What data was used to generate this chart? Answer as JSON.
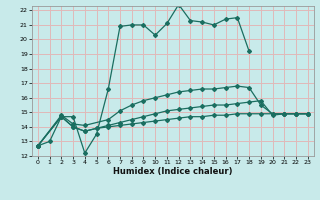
{
  "xlabel": "Humidex (Indice chaleur)",
  "xlim": [
    -0.5,
    23.5
  ],
  "ylim": [
    12,
    22.3
  ],
  "yticks": [
    12,
    13,
    14,
    15,
    16,
    17,
    18,
    19,
    20,
    21,
    22
  ],
  "xticks": [
    0,
    1,
    2,
    3,
    4,
    5,
    6,
    7,
    8,
    9,
    10,
    11,
    12,
    13,
    14,
    15,
    16,
    17,
    18,
    19,
    20,
    21,
    22,
    23
  ],
  "background_color": "#c8eaea",
  "grid_color": "#e0b8b8",
  "line_color": "#1a6e60",
  "line1_x": [
    0,
    1,
    2,
    3,
    4,
    5,
    6,
    7,
    8,
    9,
    10,
    11,
    12,
    13,
    14,
    15,
    16,
    17,
    18
  ],
  "line1_y": [
    12.7,
    13.0,
    14.7,
    14.7,
    12.2,
    13.5,
    16.6,
    20.9,
    21.0,
    21.0,
    20.3,
    21.1,
    22.4,
    21.3,
    21.2,
    21.0,
    21.4,
    21.5,
    19.2
  ],
  "line2_x": [
    0,
    2,
    3,
    4,
    6,
    7,
    8,
    9,
    10,
    11,
    12,
    13,
    14,
    15,
    16,
    17,
    18,
    19,
    20,
    21,
    22,
    23
  ],
  "line2_y": [
    12.7,
    14.8,
    14.2,
    14.1,
    14.5,
    15.1,
    15.5,
    15.8,
    16.0,
    16.2,
    16.4,
    16.5,
    16.6,
    16.6,
    16.7,
    16.8,
    16.7,
    15.5,
    14.9,
    14.9,
    14.9,
    14.9
  ],
  "line3_x": [
    0,
    2,
    3,
    4,
    5,
    6,
    7,
    8,
    9,
    10,
    11,
    12,
    13,
    14,
    15,
    16,
    17,
    18,
    19,
    20,
    21,
    22,
    23
  ],
  "line3_y": [
    12.7,
    14.7,
    14.0,
    13.7,
    13.9,
    14.1,
    14.3,
    14.5,
    14.7,
    14.9,
    15.1,
    15.2,
    15.3,
    15.4,
    15.5,
    15.5,
    15.6,
    15.7,
    15.8,
    14.8,
    14.9,
    14.9,
    14.9
  ],
  "line4_x": [
    0,
    2,
    3,
    4,
    5,
    6,
    7,
    8,
    9,
    10,
    11,
    12,
    13,
    14,
    15,
    16,
    17,
    18,
    19,
    20,
    21,
    22,
    23
  ],
  "line4_y": [
    12.7,
    14.7,
    14.0,
    13.7,
    13.9,
    14.0,
    14.1,
    14.2,
    14.3,
    14.4,
    14.5,
    14.6,
    14.7,
    14.7,
    14.8,
    14.8,
    14.9,
    14.9,
    14.9,
    14.9,
    14.9,
    14.9,
    14.9
  ]
}
